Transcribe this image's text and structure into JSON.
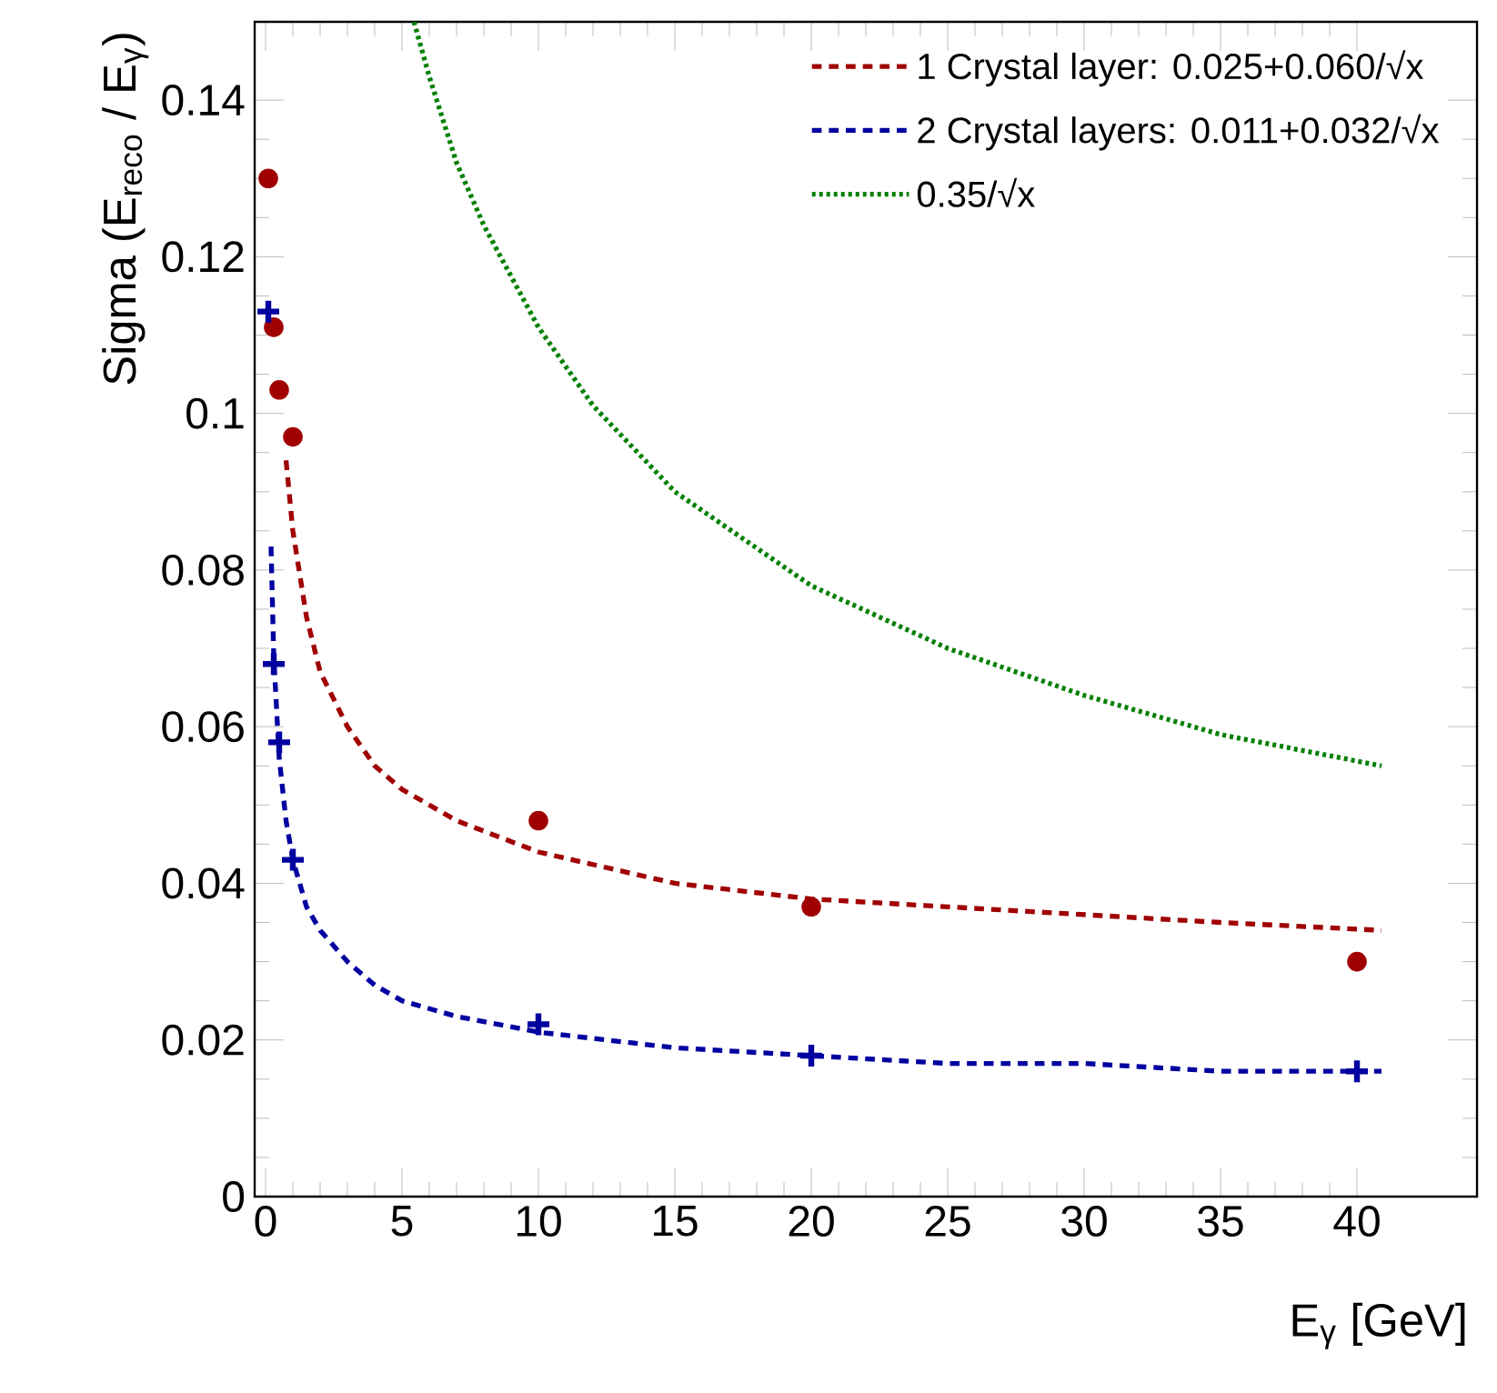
{
  "chart_data": {
    "type": "scatter",
    "xlabel": "E$_{γ}$ [GeV]",
    "ylabel": "Sigma (E$_{reco}$ / E$_{γ}$)",
    "xlim": [
      -0.4,
      44.4
    ],
    "ylim": [
      0,
      0.15
    ],
    "xticks": [
      0,
      5,
      10,
      15,
      20,
      25,
      30,
      35,
      40
    ],
    "yticks": [
      0,
      0.02,
      0.04,
      0.06,
      0.08,
      0.1,
      0.12,
      0.14
    ],
    "legend": "top right",
    "grid": false,
    "series": [
      {
        "marker": "circle",
        "color": "#a00000",
        "x": [
          0.1,
          0.3,
          0.5,
          1,
          10,
          20,
          40
        ],
        "values": [
          0.13,
          0.111,
          0.103,
          0.097,
          0.048,
          0.037,
          0.03
        ]
      },
      {
        "marker": "cross",
        "color": "#0000a0",
        "x": [
          0.1,
          0.3,
          0.5,
          1,
          10,
          20,
          40
        ],
        "values": [
          0.113,
          0.068,
          0.058,
          0.043,
          0.022,
          0.018,
          0.016
        ]
      },
      {
        "type": "line",
        "name": "1 Crystal layer: 0.025+0.060/√x",
        "line_style": "dashed",
        "marker": "none",
        "color": "#a00000",
        "x": [
          0.75,
          1,
          1.5,
          2,
          3,
          4,
          5,
          7,
          10,
          15,
          20,
          25,
          30,
          35,
          40.9
        ],
        "values": [
          0.094,
          0.085,
          0.074,
          0.067,
          0.06,
          0.055,
          0.052,
          0.048,
          0.044,
          0.04,
          0.038,
          0.037,
          0.036,
          0.035,
          0.034
        ]
      },
      {
        "type": "line",
        "name": "2 Crystal layers: 0.011+0.032/√x",
        "line_style": "dashed",
        "marker": "none",
        "color": "#0000a0",
        "x": [
          0.2,
          0.3,
          0.5,
          0.75,
          1,
          1.5,
          2,
          3,
          4,
          5,
          7,
          10,
          15,
          20,
          25,
          30,
          35,
          40.9
        ],
        "values": [
          0.083,
          0.069,
          0.056,
          0.048,
          0.043,
          0.037,
          0.034,
          0.03,
          0.027,
          0.025,
          0.023,
          0.021,
          0.019,
          0.018,
          0.017,
          0.017,
          0.016,
          0.016
        ]
      },
      {
        "type": "line",
        "name": "0.35/√x",
        "line_style": "dotted",
        "marker": "none",
        "color": "#008000",
        "x": [
          5.44,
          6,
          7,
          8,
          10,
          12,
          15,
          20,
          25,
          30,
          35,
          40.9
        ],
        "values": [
          0.15,
          0.143,
          0.132,
          0.124,
          0.111,
          0.101,
          0.09,
          0.078,
          0.07,
          0.064,
          0.059,
          0.055
        ]
      }
    ]
  }
}
